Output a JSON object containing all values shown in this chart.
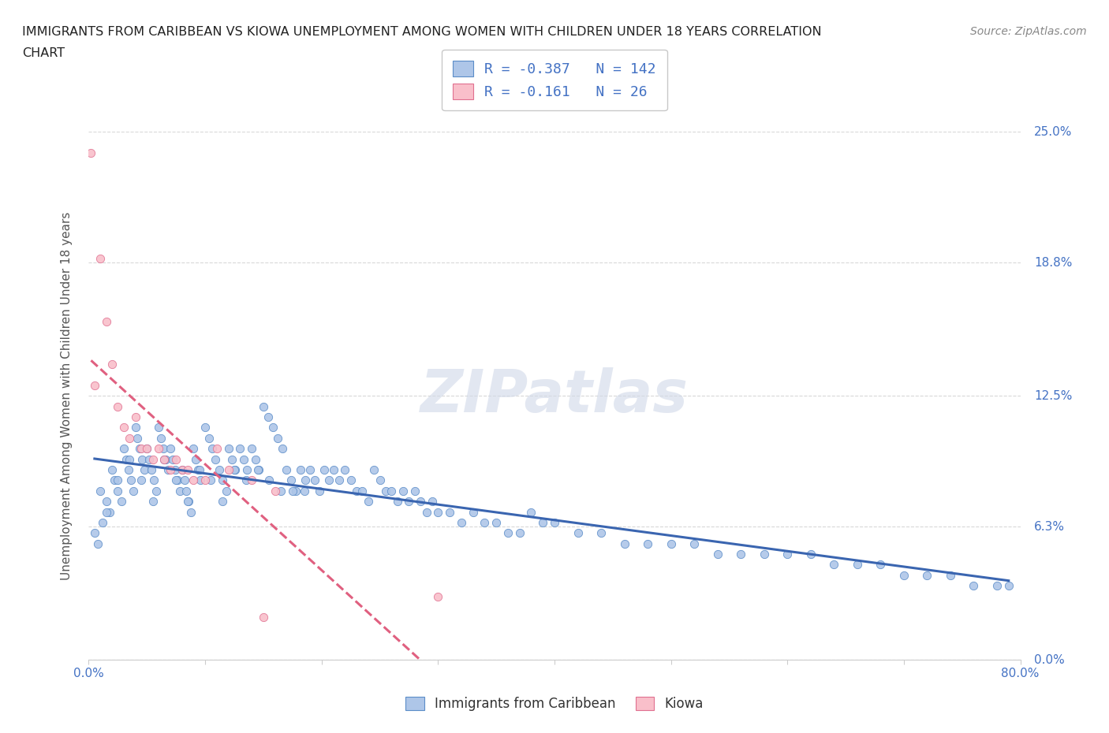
{
  "title_line1": "IMMIGRANTS FROM CARIBBEAN VS KIOWA UNEMPLOYMENT AMONG WOMEN WITH CHILDREN UNDER 18 YEARS CORRELATION",
  "title_line2": "CHART",
  "source": "Source: ZipAtlas.com",
  "ylabel": "Unemployment Among Women with Children Under 18 years",
  "xlim": [
    0.0,
    0.8
  ],
  "ylim": [
    0.0,
    0.25
  ],
  "x_ticks": [
    0.0,
    0.1,
    0.2,
    0.3,
    0.4,
    0.5,
    0.6,
    0.7,
    0.8
  ],
  "y_ticks": [
    0.0,
    0.063,
    0.125,
    0.188,
    0.25
  ],
  "y_tick_labels_right": [
    "0.0%",
    "6.3%",
    "12.5%",
    "18.8%",
    "25.0%"
  ],
  "grid_color": "#d8d8d8",
  "background_color": "#ffffff",
  "watermark": "ZIPatlas",
  "caribbean_color": "#aec6e8",
  "kiowa_color": "#f9bfca",
  "caribbean_edge_color": "#5b8dc8",
  "kiowa_edge_color": "#e07090",
  "caribbean_line_color": "#3a65b0",
  "kiowa_line_color": "#e06080",
  "R_caribbean": -0.387,
  "N_caribbean": 142,
  "R_kiowa": -0.161,
  "N_kiowa": 26,
  "caribbean_x": [
    0.005,
    0.008,
    0.01,
    0.012,
    0.015,
    0.018,
    0.02,
    0.022,
    0.025,
    0.028,
    0.03,
    0.032,
    0.034,
    0.036,
    0.038,
    0.04,
    0.042,
    0.044,
    0.046,
    0.048,
    0.05,
    0.052,
    0.054,
    0.056,
    0.058,
    0.06,
    0.062,
    0.064,
    0.066,
    0.068,
    0.07,
    0.072,
    0.074,
    0.076,
    0.078,
    0.08,
    0.082,
    0.084,
    0.086,
    0.088,
    0.09,
    0.092,
    0.094,
    0.096,
    0.1,
    0.103,
    0.106,
    0.109,
    0.112,
    0.115,
    0.118,
    0.12,
    0.123,
    0.126,
    0.13,
    0.133,
    0.136,
    0.14,
    0.143,
    0.146,
    0.15,
    0.154,
    0.158,
    0.162,
    0.166,
    0.17,
    0.174,
    0.178,
    0.182,
    0.186,
    0.19,
    0.194,
    0.198,
    0.202,
    0.206,
    0.21,
    0.215,
    0.22,
    0.225,
    0.23,
    0.235,
    0.24,
    0.245,
    0.25,
    0.255,
    0.26,
    0.265,
    0.27,
    0.275,
    0.28,
    0.285,
    0.29,
    0.295,
    0.3,
    0.31,
    0.32,
    0.33,
    0.34,
    0.35,
    0.36,
    0.37,
    0.38,
    0.39,
    0.4,
    0.42,
    0.44,
    0.46,
    0.48,
    0.5,
    0.52,
    0.54,
    0.56,
    0.58,
    0.6,
    0.62,
    0.64,
    0.66,
    0.68,
    0.7,
    0.72,
    0.74,
    0.76,
    0.78,
    0.79,
    0.015,
    0.025,
    0.035,
    0.045,
    0.055,
    0.065,
    0.075,
    0.085,
    0.095,
    0.105,
    0.115,
    0.125,
    0.135,
    0.145,
    0.155,
    0.165,
    0.175,
    0.185
  ],
  "caribbean_y": [
    0.06,
    0.055,
    0.08,
    0.065,
    0.075,
    0.07,
    0.09,
    0.085,
    0.08,
    0.075,
    0.1,
    0.095,
    0.09,
    0.085,
    0.08,
    0.11,
    0.105,
    0.1,
    0.095,
    0.09,
    0.1,
    0.095,
    0.09,
    0.085,
    0.08,
    0.11,
    0.105,
    0.1,
    0.095,
    0.09,
    0.1,
    0.095,
    0.09,
    0.085,
    0.08,
    0.09,
    0.085,
    0.08,
    0.075,
    0.07,
    0.1,
    0.095,
    0.09,
    0.085,
    0.11,
    0.105,
    0.1,
    0.095,
    0.09,
    0.085,
    0.08,
    0.1,
    0.095,
    0.09,
    0.1,
    0.095,
    0.09,
    0.1,
    0.095,
    0.09,
    0.12,
    0.115,
    0.11,
    0.105,
    0.1,
    0.09,
    0.085,
    0.08,
    0.09,
    0.085,
    0.09,
    0.085,
    0.08,
    0.09,
    0.085,
    0.09,
    0.085,
    0.09,
    0.085,
    0.08,
    0.08,
    0.075,
    0.09,
    0.085,
    0.08,
    0.08,
    0.075,
    0.08,
    0.075,
    0.08,
    0.075,
    0.07,
    0.075,
    0.07,
    0.07,
    0.065,
    0.07,
    0.065,
    0.065,
    0.06,
    0.06,
    0.07,
    0.065,
    0.065,
    0.06,
    0.06,
    0.055,
    0.055,
    0.055,
    0.055,
    0.05,
    0.05,
    0.05,
    0.05,
    0.05,
    0.045,
    0.045,
    0.045,
    0.04,
    0.04,
    0.04,
    0.035,
    0.035,
    0.035,
    0.07,
    0.085,
    0.095,
    0.085,
    0.075,
    0.095,
    0.085,
    0.075,
    0.09,
    0.085,
    0.075,
    0.09,
    0.085,
    0.09,
    0.085,
    0.08,
    0.08,
    0.08
  ],
  "kiowa_x": [
    0.002,
    0.005,
    0.01,
    0.015,
    0.02,
    0.025,
    0.03,
    0.035,
    0.04,
    0.045,
    0.05,
    0.055,
    0.06,
    0.065,
    0.07,
    0.075,
    0.08,
    0.085,
    0.09,
    0.1,
    0.11,
    0.12,
    0.14,
    0.16,
    0.3,
    0.15
  ],
  "kiowa_y": [
    0.24,
    0.13,
    0.19,
    0.16,
    0.14,
    0.12,
    0.11,
    0.105,
    0.115,
    0.1,
    0.1,
    0.095,
    0.1,
    0.095,
    0.09,
    0.095,
    0.09,
    0.09,
    0.085,
    0.085,
    0.1,
    0.09,
    0.085,
    0.08,
    0.03,
    0.02
  ]
}
